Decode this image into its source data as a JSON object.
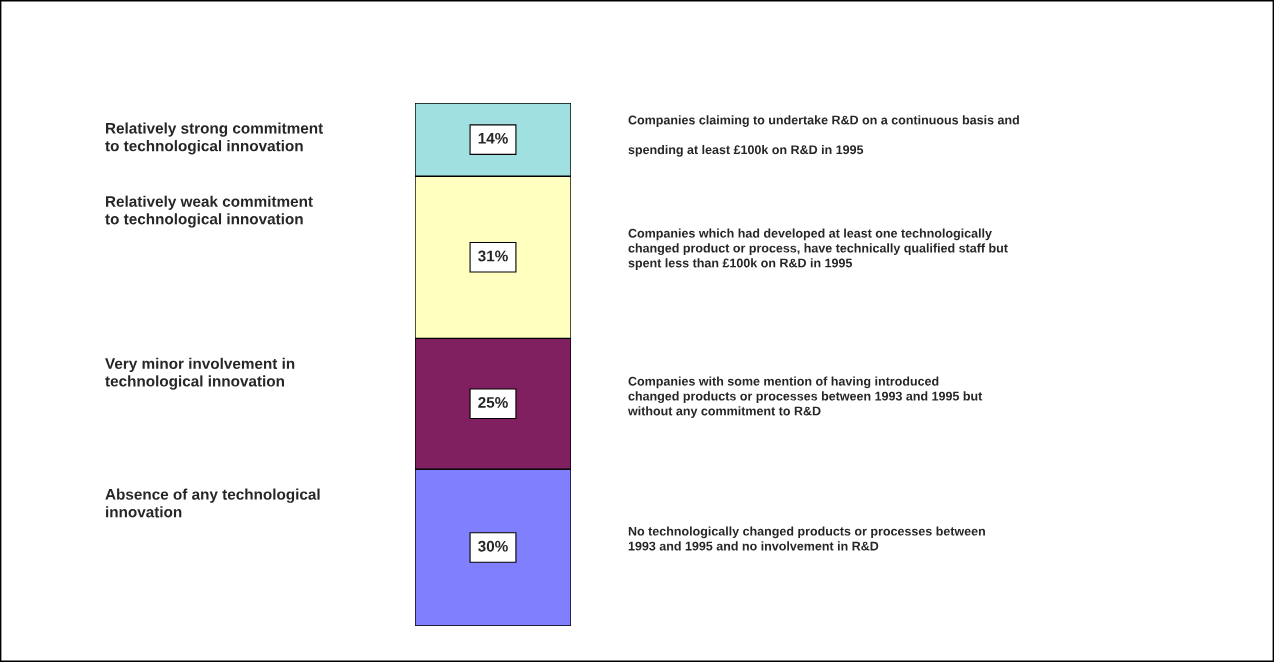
{
  "chart_data": {
    "type": "bar",
    "stacked": true,
    "categories": [
      null
    ],
    "series": [
      {
        "color": "#8080ff",
        "values": [
          30
        ],
        "value_labels": [
          "30%"
        ]
      },
      {
        "color": "#802060",
        "values": [
          25
        ],
        "value_labels": [
          "25%"
        ]
      },
      {
        "color": "#ffffc0",
        "values": [
          31
        ],
        "value_labels": [
          "31%"
        ]
      },
      {
        "color": "#a0e0e0",
        "values": [
          14
        ],
        "value_labels": [
          "14%"
        ]
      }
    ],
    "annotations": [
      "Absence of any technological\ninnovation",
      "Very minor involvement in\ntechnological innovation",
      "Relatively weak commitment\nto technological innovation",
      "Relatively strong commitment\nto technological innovation",
      "No technologically changed products or processes between\n1993 and 1995 and no involvement in R&D",
      "Companies with some mention of having introduced\nchanged products or processes between 1993 and 1995 but\nwithout any commitment to R&D",
      "Companies which had developed at least one technologically\nchanged product or process, have technically qualified staff but\nspent less than £100k on R&D in 1995",
      "Companies claiming to undertake R&D on a continuous basis and\n\nspending at least £100k on R&D in 1995"
    ]
  }
}
